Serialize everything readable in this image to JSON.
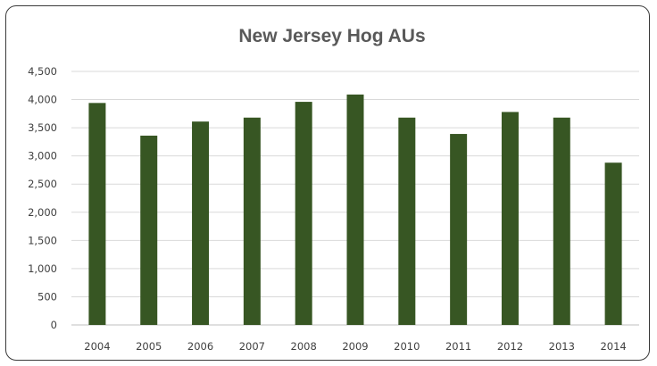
{
  "chart_data": {
    "type": "bar",
    "title": "New Jersey Hog AUs",
    "xlabel": "",
    "ylabel": "",
    "categories": [
      "2004",
      "2005",
      "2006",
      "2007",
      "2008",
      "2009",
      "2010",
      "2011",
      "2012",
      "2013",
      "2014"
    ],
    "values": [
      3940,
      3360,
      3610,
      3680,
      3960,
      4090,
      3680,
      3390,
      3780,
      3680,
      2880
    ],
    "ylim": [
      0,
      4500
    ],
    "yticks": [
      0,
      500,
      1000,
      1500,
      2000,
      2500,
      3000,
      3500,
      4000,
      4500
    ],
    "ytick_labels": [
      "0",
      "500",
      "1,000",
      "1,500",
      "2,000",
      "2,500",
      "3,000",
      "3,500",
      "4,000",
      "4,500"
    ],
    "grid": true,
    "legend": "none",
    "bar_color": "#375623",
    "grid_color": "#d9d9d9"
  }
}
